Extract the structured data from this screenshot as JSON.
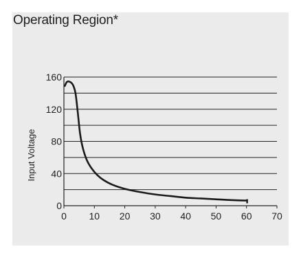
{
  "chart_data": {
    "type": "line",
    "title": "Operating Region*",
    "xlabel": "",
    "ylabel": "Input Voltage",
    "xlim": [
      0,
      70
    ],
    "ylim": [
      0,
      160
    ],
    "x_ticks": [
      "0",
      "10",
      "20",
      "30",
      "40",
      "50",
      "60",
      "70"
    ],
    "y_ticks": [
      "0",
      "40",
      "80",
      "120",
      "160"
    ],
    "grid": true,
    "series": [
      {
        "color": "#1a1a1a",
        "x": [
          0.3,
          1,
          2,
          3,
          3.8,
          4.5,
          5.3,
          6.2,
          7.5,
          9,
          11,
          13,
          16,
          20,
          25,
          30,
          35,
          40,
          45,
          50,
          55,
          59.5,
          60.2
        ],
        "y": [
          149,
          154,
          154,
          150,
          140,
          118,
          90,
          72,
          57,
          47,
          38,
          32,
          26,
          21,
          17,
          14,
          12,
          10,
          9,
          8,
          7,
          6.5,
          7
        ]
      }
    ],
    "end_marker": {
      "x": 60.2,
      "y_from": 3,
      "y_to": 8
    }
  },
  "colors": {
    "panel_background": "#ebebeb",
    "grid": "#222222",
    "line": "#1a1a1a"
  }
}
